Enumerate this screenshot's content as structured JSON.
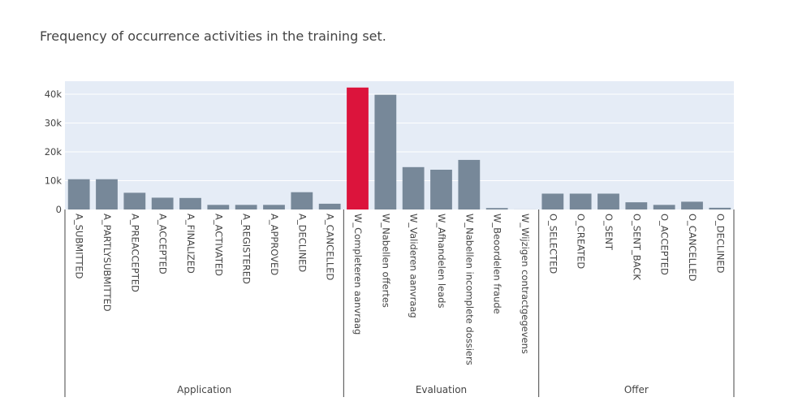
{
  "chart_data": {
    "type": "bar",
    "title": "Frequency of occurrence activities in the training set.",
    "xlabel": "",
    "ylabel": "",
    "ylim": [
      0,
      44500
    ],
    "y_ticks": [
      0,
      10000,
      20000,
      30000,
      40000
    ],
    "y_tick_labels": [
      "0",
      "10k",
      "20k",
      "30k",
      "40k"
    ],
    "grid": true,
    "legend": "none",
    "bar_color": "#778899",
    "highlight_color": "#dc143c",
    "plot_background": "#e5ecf6",
    "groups": [
      {
        "name": "Application",
        "start": 0,
        "end": 9
      },
      {
        "name": "Evaluation",
        "start": 10,
        "end": 16
      },
      {
        "name": "Offer",
        "start": 17,
        "end": 23
      }
    ],
    "categories": [
      "A_SUBMITTED",
      "A_PARTLYSUBMITTED",
      "A_PREACCEPTED",
      "A_ACCEPTED",
      "A_FINALIZED",
      "A_ACTIVATED",
      "A_REGISTERED",
      "A_APPROVED",
      "A_DECLINED",
      "A_CANCELLED",
      "W_Completeren aanvraag",
      "W_Nabellen offertes",
      "W_Valideren aanvraag",
      "W_Afhandelen leads",
      "W_Nabellen incomplete dossiers",
      "W_Beoordelen fraude",
      "W_Wijzigen contractgegevens",
      "O_SELECTED",
      "O_CREATED",
      "O_SENT",
      "O_SENT_BACK",
      "O_ACCEPTED",
      "O_CANCELLED",
      "O_DECLINED"
    ],
    "values": [
      10500,
      10500,
      5800,
      4100,
      4000,
      1600,
      1600,
      1600,
      6000,
      2000,
      42300,
      39800,
      14700,
      13800,
      17200,
      500,
      20,
      5500,
      5500,
      5500,
      2500,
      1600,
      2700,
      600
    ],
    "highlight_index": 10
  }
}
